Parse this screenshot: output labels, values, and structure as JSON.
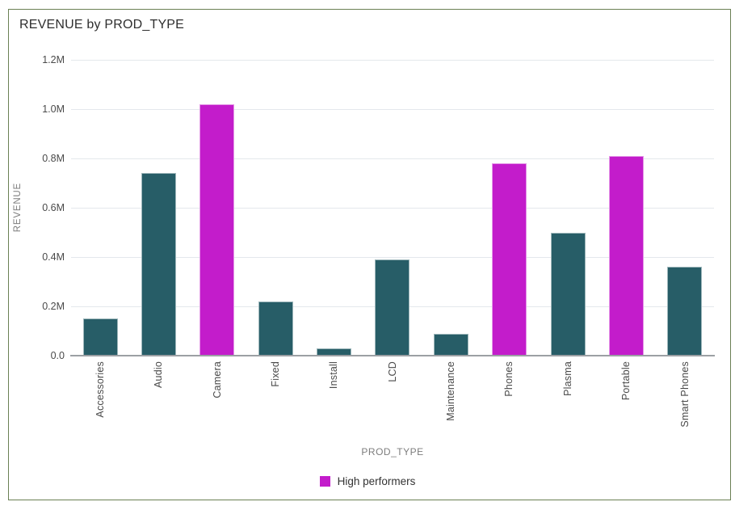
{
  "window": {
    "border_color": "#6a8054"
  },
  "chart_data": {
    "type": "bar",
    "title": "REVENUE by PROD_TYPE",
    "xlabel": "PROD_TYPE",
    "ylabel": "REVENUE",
    "unit": "M",
    "categories": [
      "Accessories",
      "Audio",
      "Camera",
      "Fixed",
      "Install",
      "LCD",
      "Maintenance",
      "Phones",
      "Plasma",
      "Portable",
      "Smart Phones"
    ],
    "values": [
      0.15,
      0.74,
      1.02,
      0.22,
      0.03,
      0.39,
      0.09,
      0.78,
      0.5,
      0.81,
      0.36
    ],
    "high_performers": [
      "Camera",
      "Phones",
      "Portable"
    ],
    "ylim": [
      0,
      1.2
    ],
    "yticks": [
      {
        "value": 0,
        "label": "0.0"
      },
      {
        "value": 0.2,
        "label": "0.2M"
      },
      {
        "value": 0.4,
        "label": "0.4M"
      },
      {
        "value": 0.6,
        "label": "0.6M"
      },
      {
        "value": 0.8,
        "label": "0.8M"
      },
      {
        "value": 1.0,
        "label": "1.0M"
      },
      {
        "value": 1.2,
        "label": "1.2M"
      }
    ],
    "grid": true,
    "legend": {
      "position": "bottom",
      "items": [
        {
          "label": "High performers",
          "color": "#c31ccb"
        }
      ]
    },
    "colors": {
      "default_bar": "#275d67",
      "highlight_bar": "#c31ccb",
      "gridline": "#e4e8ec",
      "axis_line": "#9ca0a4"
    }
  }
}
